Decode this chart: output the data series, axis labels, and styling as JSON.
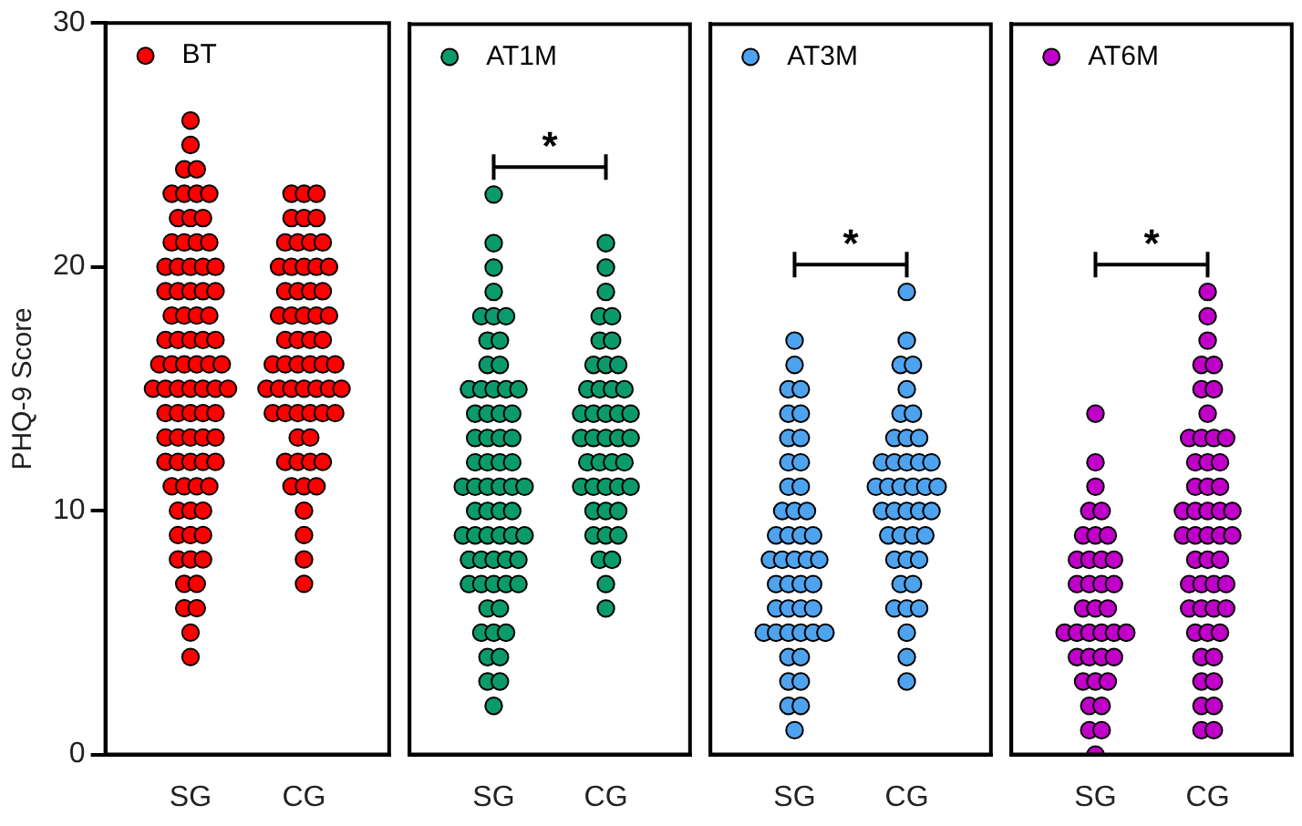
{
  "chart_data": [
    {
      "type": "scatter",
      "categories": [
        "SG",
        "CG"
      ],
      "ylabel": "PHQ-9 Score",
      "ylim": [
        0,
        30
      ],
      "yticks": [
        0,
        10,
        20,
        30
      ],
      "legend": "top left",
      "marker": "circle",
      "grid": false,
      "series": [
        {
          "name": "BT",
          "color": "#ff0000",
          "x": [
            "SG",
            "SG",
            "SG",
            "SG",
            "SG",
            "SG",
            "SG",
            "SG",
            "SG",
            "SG",
            "SG",
            "SG",
            "SG",
            "SG",
            "SG",
            "SG",
            "SG",
            "SG",
            "SG",
            "SG",
            "SG",
            "SG",
            "SG",
            "SG",
            "SG",
            "SG",
            "SG",
            "SG",
            "SG",
            "SG",
            "SG",
            "SG",
            "SG",
            "SG",
            "SG",
            "SG",
            "SG",
            "SG",
            "SG",
            "SG",
            "SG",
            "SG",
            "SG",
            "SG",
            "SG",
            "SG",
            "SG",
            "SG",
            "SG",
            "SG",
            "SG",
            "SG",
            "SG",
            "SG",
            "SG",
            "SG",
            "SG",
            "SG",
            "SG",
            "SG",
            "SG",
            "SG",
            "SG",
            "SG",
            "SG",
            "SG",
            "SG",
            "SG",
            "SG",
            "SG",
            "SG",
            "SG",
            "SG",
            "SG",
            "SG",
            "SG",
            "SG",
            "SG",
            "SG",
            "SG",
            "SG",
            "CG",
            "CG",
            "CG",
            "CG",
            "CG",
            "CG",
            "CG",
            "CG",
            "CG",
            "CG",
            "CG",
            "CG",
            "CG",
            "CG",
            "CG",
            "CG",
            "CG",
            "CG",
            "CG",
            "CG",
            "CG",
            "CG",
            "CG",
            "CG",
            "CG",
            "CG",
            "CG",
            "CG",
            "CG",
            "CG",
            "CG",
            "CG",
            "CG",
            "CG",
            "CG",
            "CG",
            "CG",
            "CG",
            "CG",
            "CG",
            "CG",
            "CG",
            "CG",
            "CG",
            "CG",
            "CG",
            "CG",
            "CG",
            "CG",
            "CG",
            "CG",
            "CG",
            "CG",
            "CG",
            "CG",
            "CG",
            "CG",
            "CG",
            "CG",
            "CG"
          ],
          "values": [
            26,
            25,
            24,
            24,
            23,
            23,
            23,
            23,
            22,
            22,
            22,
            21,
            21,
            21,
            21,
            20,
            20,
            20,
            20,
            20,
            19,
            19,
            19,
            19,
            19,
            18,
            18,
            18,
            18,
            17,
            17,
            17,
            17,
            17,
            16,
            16,
            16,
            16,
            16,
            16,
            15,
            15,
            15,
            15,
            15,
            15,
            15,
            14,
            14,
            14,
            14,
            14,
            13,
            13,
            13,
            13,
            13,
            12,
            12,
            12,
            12,
            12,
            11,
            11,
            11,
            11,
            10,
            10,
            10,
            9,
            9,
            9,
            8,
            8,
            8,
            7,
            7,
            6,
            6,
            5,
            4,
            23,
            23,
            23,
            22,
            22,
            22,
            21,
            21,
            21,
            21,
            20,
            20,
            20,
            20,
            20,
            19,
            19,
            19,
            19,
            18,
            18,
            18,
            18,
            18,
            17,
            17,
            17,
            17,
            16,
            16,
            16,
            16,
            16,
            16,
            15,
            15,
            15,
            15,
            15,
            15,
            15,
            14,
            14,
            14,
            14,
            14,
            14,
            13,
            13,
            12,
            12,
            12,
            12,
            11,
            11,
            11,
            10,
            9,
            8,
            7
          ]
        }
      ]
    },
    {
      "type": "scatter",
      "categories": [
        "SG",
        "CG"
      ],
      "ylim": [
        0,
        30
      ],
      "yticks": [
        0,
        10,
        20,
        30
      ],
      "tick_labels": "x",
      "legend": "top left",
      "marker": "circle",
      "grid": false,
      "annotations": [
        "*"
      ],
      "series": [
        {
          "name": "AT1M",
          "color": "#0b9a6c",
          "x": [
            "SG",
            "SG",
            "SG",
            "SG",
            "SG",
            "SG",
            "SG",
            "SG",
            "SG",
            "SG",
            "SG",
            "SG",
            "SG",
            "SG",
            "SG",
            "SG",
            "SG",
            "SG",
            "SG",
            "SG",
            "SG",
            "SG",
            "SG",
            "SG",
            "SG",
            "SG",
            "SG",
            "SG",
            "SG",
            "SG",
            "SG",
            "SG",
            "SG",
            "SG",
            "SG",
            "SG",
            "SG",
            "SG",
            "SG",
            "SG",
            "SG",
            "SG",
            "SG",
            "SG",
            "SG",
            "SG",
            "SG",
            "SG",
            "SG",
            "SG",
            "SG",
            "SG",
            "SG",
            "SG",
            "SG",
            "SG",
            "SG",
            "SG",
            "SG",
            "SG",
            "SG",
            "SG",
            "SG",
            "SG",
            "CG",
            "CG",
            "CG",
            "CG",
            "CG",
            "CG",
            "CG",
            "CG",
            "CG",
            "CG",
            "CG",
            "CG",
            "CG",
            "CG",
            "CG",
            "CG",
            "CG",
            "CG",
            "CG",
            "CG",
            "CG",
            "CG",
            "CG",
            "CG",
            "CG",
            "CG",
            "CG",
            "CG",
            "CG",
            "CG",
            "CG",
            "CG",
            "CG",
            "CG",
            "CG",
            "CG",
            "CG",
            "CG",
            "CG",
            "CG",
            "CG",
            "CG",
            "CG"
          ],
          "values": [
            23,
            21,
            20,
            19,
            18,
            18,
            18,
            17,
            17,
            16,
            16,
            15,
            15,
            15,
            15,
            15,
            14,
            14,
            14,
            14,
            13,
            13,
            13,
            13,
            12,
            12,
            12,
            12,
            11,
            11,
            11,
            11,
            11,
            11,
            10,
            10,
            10,
            10,
            9,
            9,
            9,
            9,
            9,
            9,
            8,
            8,
            8,
            8,
            8,
            7,
            7,
            7,
            7,
            7,
            6,
            6,
            5,
            5,
            5,
            4,
            4,
            3,
            3,
            2,
            21,
            20,
            19,
            18,
            18,
            17,
            17,
            16,
            16,
            16,
            15,
            15,
            15,
            15,
            14,
            14,
            14,
            14,
            14,
            13,
            13,
            13,
            13,
            13,
            12,
            12,
            12,
            12,
            11,
            11,
            11,
            11,
            11,
            10,
            10,
            10,
            9,
            9,
            9,
            8,
            8,
            7,
            6
          ]
        }
      ]
    },
    {
      "type": "scatter",
      "categories": [
        "SG",
        "CG"
      ],
      "ylim": [
        0,
        30
      ],
      "yticks": [
        0,
        10,
        20,
        30
      ],
      "tick_labels": "x",
      "legend": "top left",
      "marker": "circle",
      "grid": false,
      "annotations": [
        "*"
      ],
      "series": [
        {
          "name": "AT3M",
          "color": "#4ea3ee",
          "x": [
            "SG",
            "SG",
            "SG",
            "SG",
            "SG",
            "SG",
            "SG",
            "SG",
            "SG",
            "SG",
            "SG",
            "SG",
            "SG",
            "SG",
            "SG",
            "SG",
            "SG",
            "SG",
            "SG",
            "SG",
            "SG",
            "SG",
            "SG",
            "SG",
            "SG",
            "SG",
            "SG",
            "SG",
            "SG",
            "SG",
            "SG",
            "SG",
            "SG",
            "SG",
            "SG",
            "SG",
            "SG",
            "SG",
            "SG",
            "SG",
            "SG",
            "SG",
            "SG",
            "SG",
            "SG",
            "CG",
            "CG",
            "CG",
            "CG",
            "CG",
            "CG",
            "CG",
            "CG",
            "CG",
            "CG",
            "CG",
            "CG",
            "CG",
            "CG",
            "CG",
            "CG",
            "CG",
            "CG",
            "CG",
            "CG",
            "CG",
            "CG",
            "CG",
            "CG",
            "CG",
            "CG",
            "CG",
            "CG",
            "CG",
            "CG",
            "CG",
            "CG",
            "CG",
            "CG",
            "CG",
            "CG",
            "CG",
            "CG",
            "CG",
            "CG",
            "CG"
          ],
          "values": [
            17,
            16,
            15,
            15,
            14,
            14,
            13,
            13,
            12,
            12,
            11,
            11,
            10,
            10,
            10,
            9,
            9,
            9,
            9,
            8,
            8,
            8,
            8,
            8,
            7,
            7,
            7,
            7,
            6,
            6,
            6,
            6,
            5,
            5,
            5,
            5,
            5,
            5,
            4,
            4,
            3,
            3,
            2,
            2,
            1,
            19,
            17,
            16,
            16,
            15,
            14,
            14,
            13,
            13,
            13,
            12,
            12,
            12,
            12,
            12,
            11,
            11,
            11,
            11,
            11,
            11,
            10,
            10,
            10,
            10,
            10,
            9,
            9,
            9,
            9,
            8,
            8,
            8,
            7,
            7,
            6,
            6,
            6,
            5,
            4,
            3
          ]
        }
      ]
    },
    {
      "type": "scatter",
      "categories": [
        "SG",
        "CG"
      ],
      "ylim": [
        0,
        30
      ],
      "yticks": [
        0,
        10,
        20,
        30
      ],
      "tick_labels": "x",
      "legend": "top left",
      "marker": "circle",
      "grid": false,
      "annotations": [
        "*"
      ],
      "series": [
        {
          "name": "AT6M",
          "color": "#c000c8",
          "x": [
            "SG",
            "SG",
            "SG",
            "SG",
            "SG",
            "SG",
            "SG",
            "SG",
            "SG",
            "SG",
            "SG",
            "SG",
            "SG",
            "SG",
            "SG",
            "SG",
            "SG",
            "SG",
            "SG",
            "SG",
            "SG",
            "SG",
            "SG",
            "SG",
            "SG",
            "SG",
            "SG",
            "SG",
            "SG",
            "SG",
            "SG",
            "SG",
            "SG",
            "SG",
            "SG",
            "SG",
            "SG",
            "CG",
            "CG",
            "CG",
            "CG",
            "CG",
            "CG",
            "CG",
            "CG",
            "CG",
            "CG",
            "CG",
            "CG",
            "CG",
            "CG",
            "CG",
            "CG",
            "CG",
            "CG",
            "CG",
            "CG",
            "CG",
            "CG",
            "CG",
            "CG",
            "CG",
            "CG",
            "CG",
            "CG",
            "CG",
            "CG",
            "CG",
            "CG",
            "CG",
            "CG",
            "CG",
            "CG",
            "CG",
            "CG",
            "CG",
            "CG",
            "CG",
            "CG",
            "CG",
            "CG",
            "CG",
            "CG",
            "CG",
            "CG",
            "CG",
            "CG"
          ],
          "values": [
            14,
            12,
            11,
            10,
            10,
            9,
            9,
            9,
            8,
            8,
            8,
            8,
            7,
            7,
            7,
            7,
            6,
            6,
            6,
            5,
            5,
            5,
            5,
            5,
            5,
            4,
            4,
            4,
            4,
            3,
            3,
            3,
            2,
            2,
            1,
            1,
            0,
            19,
            18,
            17,
            16,
            16,
            15,
            15,
            14,
            13,
            13,
            13,
            13,
            12,
            12,
            12,
            11,
            11,
            11,
            10,
            10,
            10,
            10,
            10,
            9,
            9,
            9,
            9,
            9,
            8,
            8,
            8,
            7,
            7,
            7,
            7,
            6,
            6,
            6,
            6,
            5,
            5,
            5,
            4,
            4,
            3,
            3,
            2,
            2,
            1,
            1
          ]
        }
      ]
    }
  ]
}
